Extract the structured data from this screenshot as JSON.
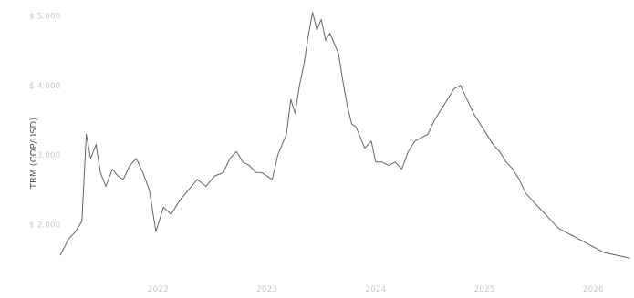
{
  "chart_data": {
    "type": "line",
    "title": "",
    "xlabel": "",
    "ylabel": "TRM (COP/USD)",
    "y_tick_labels": [
      "$ 5.000",
      "$ 4.000",
      "$ 3.000",
      "$ 2.000"
    ],
    "y_ticks": [
      5000,
      4000,
      3000,
      2000
    ],
    "x_tick_labels": [
      "2022",
      "2023",
      "2024",
      "2025",
      "2026"
    ],
    "x_ticks": [
      2022,
      2023,
      2024,
      2025,
      2026
    ],
    "xlim": [
      2021.05,
      2026.35
    ],
    "ylim": [
      1300,
      5150
    ],
    "grid": false,
    "series": [
      {
        "color": "#4a4a4a",
        "x": [
          2021.1,
          2021.18,
          2021.24,
          2021.3,
          2021.34,
          2021.38,
          2021.43,
          2021.47,
          2021.52,
          2021.58,
          2021.63,
          2021.68,
          2021.74,
          2021.8,
          2021.86,
          2021.92,
          2021.98,
          2022.05,
          2022.12,
          2022.2,
          2022.28,
          2022.36,
          2022.44,
          2022.52,
          2022.6,
          2022.66,
          2022.72,
          2022.78,
          2022.84,
          2022.9,
          2022.95,
          2023.0,
          2023.05,
          2023.1,
          2023.14,
          2023.18,
          2023.22,
          2023.26,
          2023.3,
          2023.34,
          2023.38,
          2023.42,
          2023.46,
          2023.5,
          2023.54,
          2023.58,
          2023.62,
          2023.66,
          2023.7,
          2023.74,
          2023.78,
          2023.82,
          2023.86,
          2023.9,
          2023.96,
          2024.0,
          2024.06,
          2024.12,
          2024.18,
          2024.24,
          2024.3,
          2024.36,
          2024.42,
          2024.48,
          2024.54,
          2024.6,
          2024.66,
          2024.72,
          2024.78,
          2024.84,
          2024.9,
          2024.96,
          2025.02,
          2025.08,
          2025.14,
          2025.2,
          2025.26,
          2025.32,
          2025.38,
          2025.44,
          2025.5,
          2025.56,
          2025.62,
          2025.68,
          2025.74,
          2025.8,
          2025.86,
          2025.92,
          2025.98,
          2026.04,
          2026.1,
          2026.16,
          2026.22,
          2026.28,
          2026.34
        ],
        "values": [
          1560,
          1800,
          1900,
          2050,
          3300,
          2950,
          3150,
          2750,
          2550,
          2800,
          2700,
          2650,
          2850,
          2950,
          2750,
          2500,
          1900,
          2250,
          2150,
          2350,
          2500,
          2650,
          2550,
          2700,
          2750,
          2950,
          3050,
          2900,
          2850,
          2750,
          2750,
          2700,
          2650,
          3000,
          3150,
          3300,
          3800,
          3600,
          4000,
          4300,
          4700,
          5050,
          4800,
          4950,
          4650,
          4750,
          4600,
          4450,
          4050,
          3700,
          3450,
          3400,
          3250,
          3100,
          3200,
          2900,
          2900,
          2850,
          2900,
          2800,
          3050,
          3200,
          3250,
          3300,
          3500,
          3650,
          3800,
          3950,
          4000,
          3800,
          3600,
          3450,
          3300,
          3150,
          3050,
          2900,
          2800,
          2650,
          2450,
          2350,
          2250,
          2150,
          2050,
          1950,
          1900,
          1850,
          1800,
          1750,
          1700,
          1650,
          1600,
          1580,
          1560,
          1540,
          1520
        ]
      }
    ]
  }
}
